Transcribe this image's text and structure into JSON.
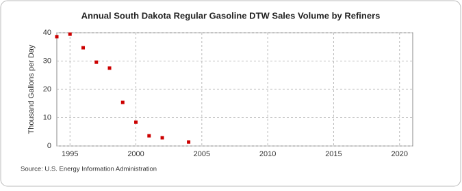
{
  "chart_data": {
    "type": "scatter",
    "title": "Annual South Dakota Regular Gasoline DTW Sales Volume by Refiners",
    "ylabel": "Thousand Gallons per Day",
    "source": "Source: U.S. Energy Information Administration",
    "x": [
      1994,
      1995,
      1996,
      1997,
      1998,
      1999,
      2000,
      2001,
      2002,
      2004
    ],
    "values": [
      38.6,
      39.5,
      34.7,
      29.6,
      27.5,
      15.4,
      8.4,
      3.6,
      2.9,
      1.4
    ],
    "color": "#cc0000",
    "xlim": [
      1994,
      2021
    ],
    "xticks": [
      1995,
      2000,
      2005,
      2010,
      2015,
      2020
    ],
    "ylim": [
      0,
      40
    ],
    "yticks": [
      0,
      10,
      20,
      30,
      40
    ],
    "grid": true
  }
}
